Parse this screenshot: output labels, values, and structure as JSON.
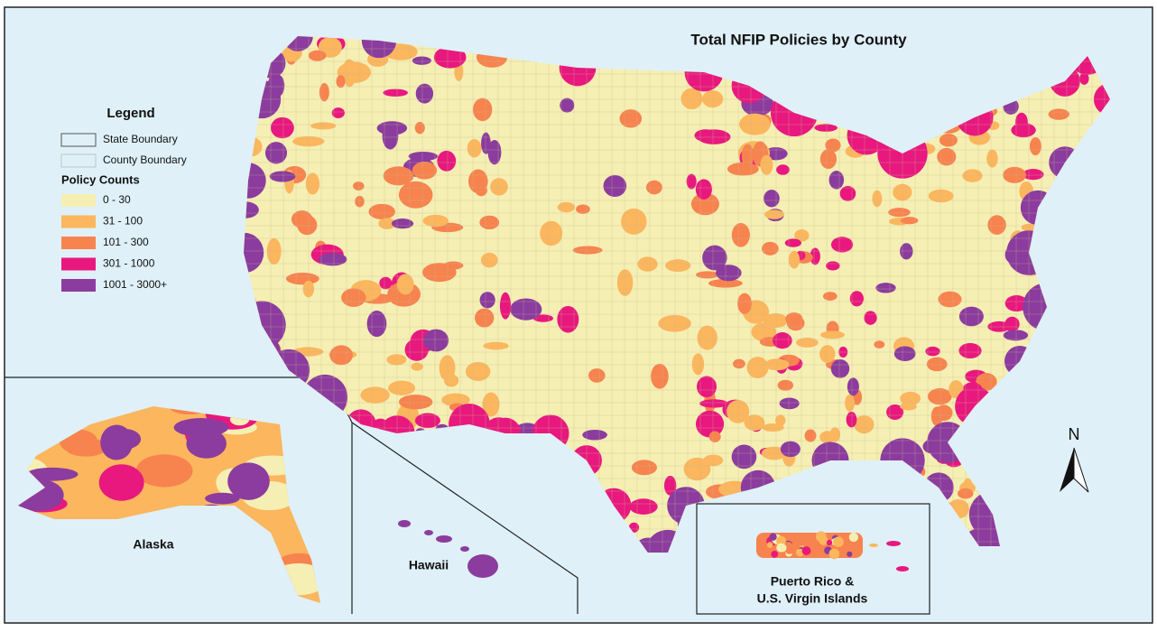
{
  "title": "Total NFIP Policies by County",
  "legend": {
    "title": "Legend",
    "boundaries": [
      "State Boundary",
      "County Boundary"
    ],
    "subtitle": "Policy Counts",
    "classes": [
      {
        "label": "0 - 30",
        "color": "#f5efb4"
      },
      {
        "label": "31 - 100",
        "color": "#fbb65e"
      },
      {
        "label": "101 - 300",
        "color": "#f7834f"
      },
      {
        "label": "301 - 1000",
        "color": "#e8187f"
      },
      {
        "label": "1001 - 3000+",
        "color": "#8b3c9e"
      }
    ]
  },
  "insets": {
    "alaska": "Alaska",
    "hawaii": "Hawaii",
    "puerto_rico": [
      "Puerto Rico &",
      "U.S. Virgin Islands"
    ]
  },
  "north": "N"
}
